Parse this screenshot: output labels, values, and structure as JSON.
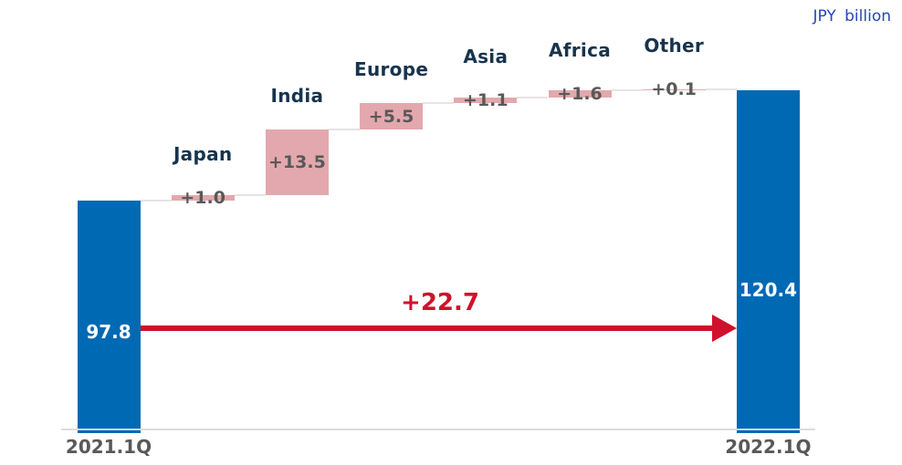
{
  "unit_note": "JPY billion",
  "colors": {
    "total_bar_blue": "#0069B4",
    "delta_bar_pink": "#E3A8AD",
    "category_navy": "#17344E",
    "value_gray": "#595959",
    "arrow_red": "#D0112B",
    "connector_gray": "#E7E3E3",
    "axis_gray": "#DCDCDC",
    "note_blue": "#2846B8",
    "total_value_text": "#FFFFFF"
  },
  "chart_data": {
    "type": "waterfall",
    "title": "",
    "unit": "JPY billion",
    "xlabel": "",
    "ylabel": "",
    "ylim": [
      50,
      130
    ],
    "grid": false,
    "legend": false,
    "columns": [
      {
        "label": "2021.1Q",
        "kind": "total",
        "value": 97.8,
        "display": "97.8"
      },
      {
        "label": "Japan",
        "kind": "delta",
        "value": 1.0,
        "display": "+1.0"
      },
      {
        "label": "India",
        "kind": "delta",
        "value": 13.5,
        "display": "+13.5"
      },
      {
        "label": "Europe",
        "kind": "delta",
        "value": 5.5,
        "display": "+5.5"
      },
      {
        "label": "Asia",
        "kind": "delta",
        "value": 1.1,
        "display": "+1.1"
      },
      {
        "label": "Africa",
        "kind": "delta",
        "value": 1.6,
        "display": "+1.6"
      },
      {
        "label": "Other",
        "kind": "delta",
        "value": 0.1,
        "display": "+0.1"
      },
      {
        "label": "2022.1Q",
        "kind": "total",
        "value": 120.4,
        "display": "120.4"
      }
    ],
    "total_change": {
      "display": "+22.7",
      "value": 22.7,
      "from": "2021.1Q",
      "to": "2022.1Q"
    }
  }
}
